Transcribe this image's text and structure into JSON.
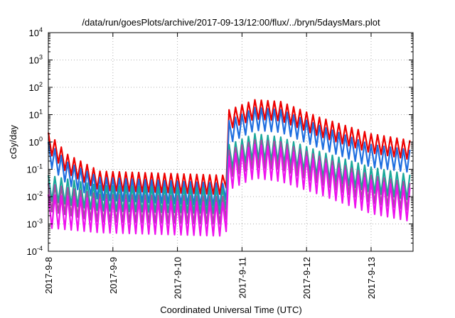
{
  "chart_data": {
    "type": "line",
    "title": "/data/run/goesPlots/archive/2017-09-13/12:00/flux/../bryn/5daysMars.plot",
    "xlabel": "Coordinated Universal Time (UTC)",
    "ylabel": "cGy/day",
    "yscale": "log",
    "ylim": [
      0.0001,
      10000
    ],
    "ytick_exponents": [
      "-4",
      "-3",
      "-2",
      "-1",
      "0",
      "1",
      "2",
      "3",
      "4"
    ],
    "ytick_base": "10",
    "xlim_days": [
      0,
      5.65
    ],
    "xticks": [
      {
        "day": 0,
        "label": "2017-9-8"
      },
      {
        "day": 1,
        "label": "2017-9-9"
      },
      {
        "day": 2,
        "label": "2017-9-10"
      },
      {
        "day": 3,
        "label": "2017-9-11"
      },
      {
        "day": 4,
        "label": "2017-9-12"
      },
      {
        "day": 5,
        "label": "2017-9-13"
      }
    ],
    "grid": true,
    "legend": "none",
    "sawtooth_period_days": 0.1,
    "series": [
      {
        "color": "#ee0000",
        "envelope": [
          [
            0,
            2.2
          ],
          [
            0.3,
            0.35
          ],
          [
            0.8,
            0.085
          ],
          [
            2.75,
            0.06
          ],
          [
            2.8,
            15
          ],
          [
            3.2,
            35
          ],
          [
            3.6,
            30
          ],
          [
            4.2,
            8
          ],
          [
            5.0,
            2.0
          ],
          [
            5.65,
            1.1
          ]
        ],
        "dip_factor": 0.2
      },
      {
        "color": "#1f6fe0",
        "envelope": [
          [
            0,
            1.0
          ],
          [
            0.3,
            0.18
          ],
          [
            0.8,
            0.05
          ],
          [
            2.75,
            0.03
          ],
          [
            2.8,
            6
          ],
          [
            3.2,
            18
          ],
          [
            3.6,
            15
          ],
          [
            4.2,
            4
          ],
          [
            5.0,
            0.8
          ],
          [
            5.65,
            0.5
          ]
        ],
        "dip_factor": 0.15
      },
      {
        "color": "#1aa89a",
        "envelope": [
          [
            0,
            0.06
          ],
          [
            0.8,
            0.025
          ],
          [
            2.75,
            0.02
          ],
          [
            2.8,
            0.8
          ],
          [
            3.2,
            2.0
          ],
          [
            3.6,
            1.5
          ],
          [
            4.2,
            0.45
          ],
          [
            5.0,
            0.12
          ],
          [
            5.65,
            0.06
          ]
        ],
        "dip_factor": 0.12
      },
      {
        "color": "#a050a0",
        "envelope": [
          [
            0,
            0.03
          ],
          [
            0.8,
            0.012
          ],
          [
            2.75,
            0.01
          ],
          [
            2.8,
            0.5
          ],
          [
            3.2,
            1.2
          ],
          [
            3.6,
            1.0
          ],
          [
            4.2,
            0.3
          ],
          [
            5.0,
            0.06
          ],
          [
            5.65,
            0.03
          ]
        ],
        "dip_factor": 0.1
      },
      {
        "color": "#ee11ee",
        "envelope": [
          [
            0,
            0.012
          ],
          [
            0.8,
            0.008
          ],
          [
            2.75,
            0.006
          ],
          [
            2.8,
            0.3
          ],
          [
            3.2,
            0.8
          ],
          [
            3.6,
            0.6
          ],
          [
            4.2,
            0.2
          ],
          [
            5.0,
            0.04
          ],
          [
            5.65,
            0.02
          ]
        ],
        "dip_factor": 0.06
      }
    ]
  }
}
